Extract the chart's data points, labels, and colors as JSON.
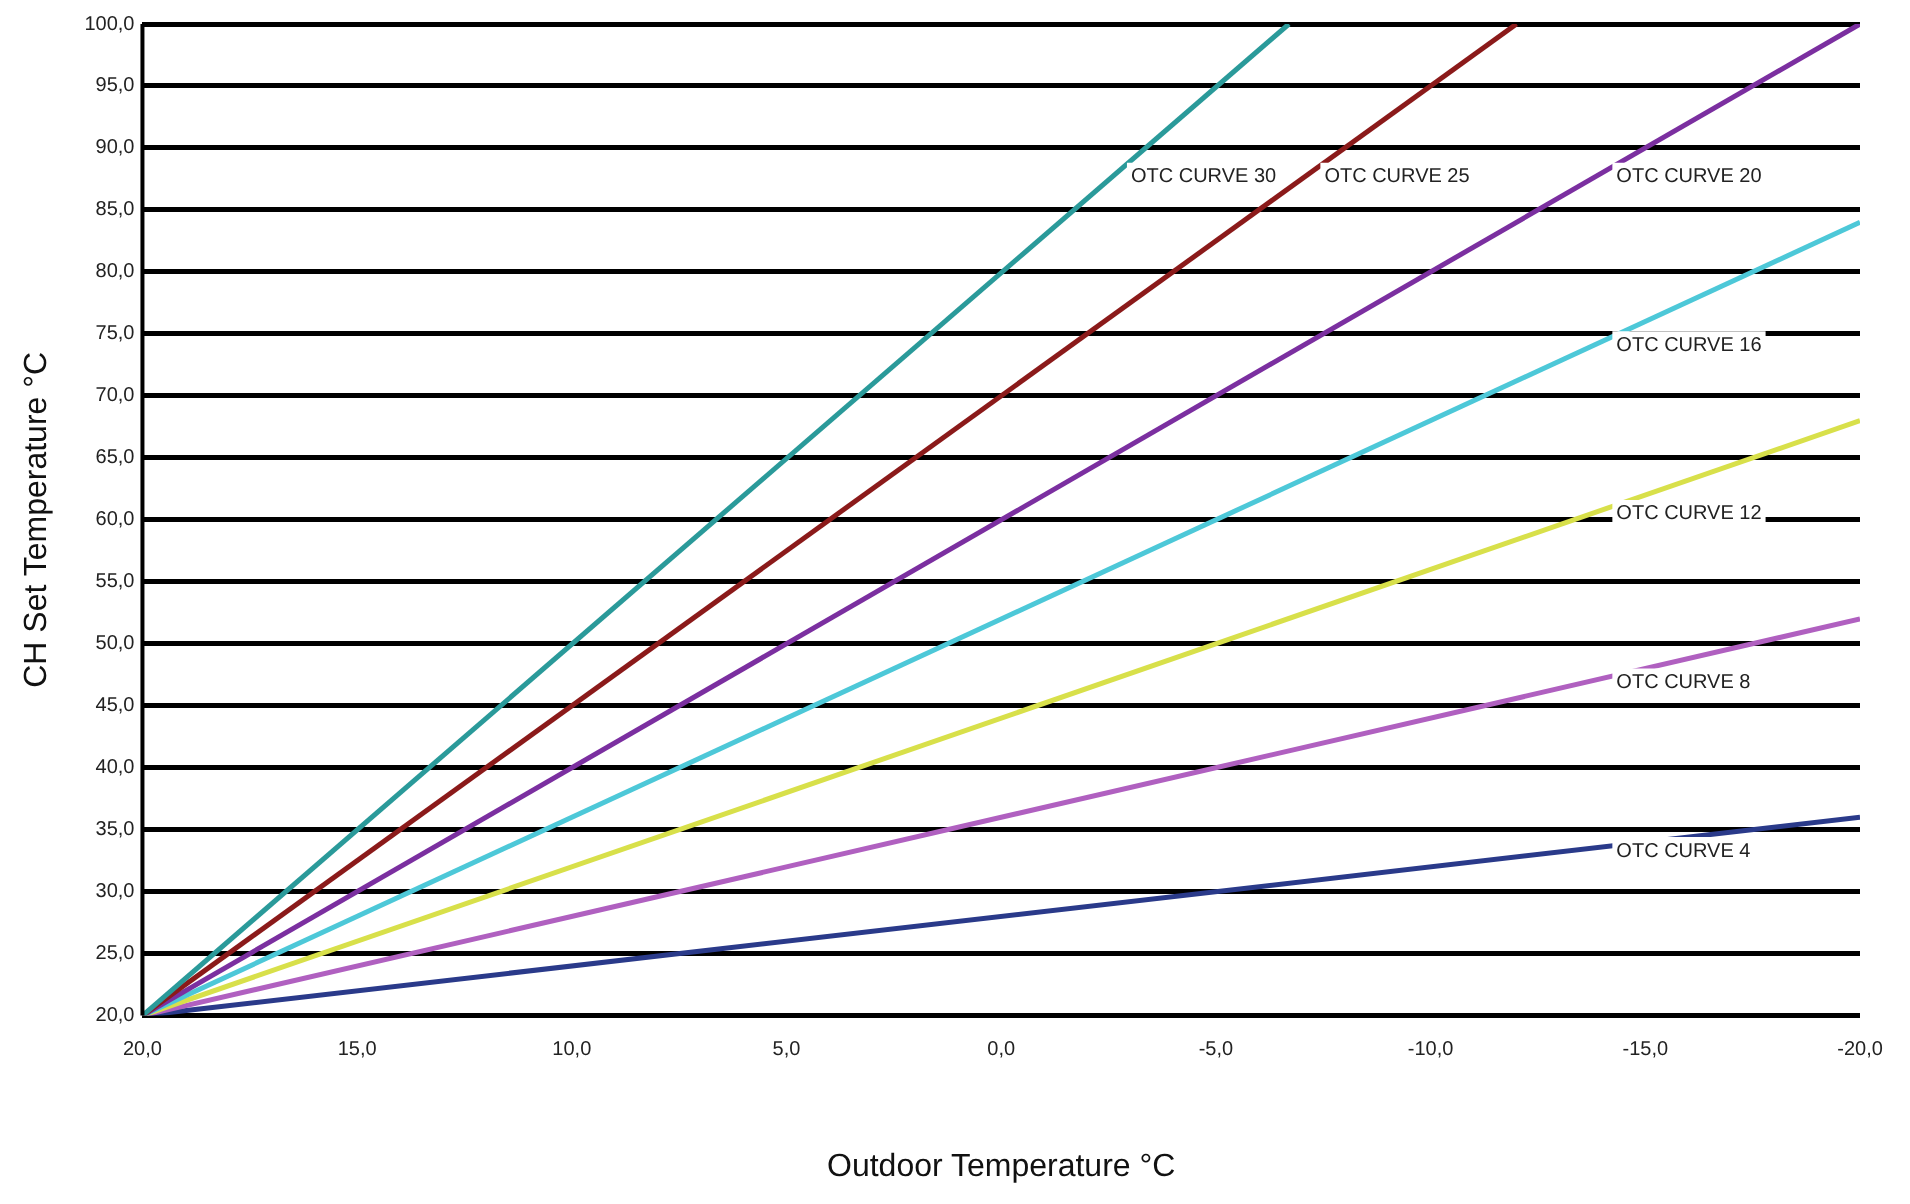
{
  "chart_data": {
    "type": "line",
    "xlabel": "Outdoor Temperature °C",
    "ylabel": "CH Set Temperature °C",
    "xlim": [
      20,
      -20
    ],
    "ylim": [
      20,
      100
    ],
    "xticks": [
      {
        "value": 20,
        "label": "20,0"
      },
      {
        "value": 15,
        "label": "15,0"
      },
      {
        "value": 10,
        "label": "10,0"
      },
      {
        "value": 5,
        "label": "5,0"
      },
      {
        "value": 0,
        "label": "0,0"
      },
      {
        "value": -5,
        "label": "-5,0"
      },
      {
        "value": -10,
        "label": "-10,0"
      },
      {
        "value": -15,
        "label": "-15,0"
      },
      {
        "value": -20,
        "label": "-20,0"
      }
    ],
    "yticks": [
      {
        "value": 20,
        "label": "20,0"
      },
      {
        "value": 25,
        "label": "25,0"
      },
      {
        "value": 30,
        "label": "30,0"
      },
      {
        "value": 35,
        "label": "35,0"
      },
      {
        "value": 40,
        "label": "40,0"
      },
      {
        "value": 45,
        "label": "45,0"
      },
      {
        "value": 50,
        "label": "50,0"
      },
      {
        "value": 55,
        "label": "55,0"
      },
      {
        "value": 60,
        "label": "60,0"
      },
      {
        "value": 65,
        "label": "65,0"
      },
      {
        "value": 70,
        "label": "70,0"
      },
      {
        "value": 75,
        "label": "75,0"
      },
      {
        "value": 80,
        "label": "80,0"
      },
      {
        "value": 85,
        "label": "85,0"
      },
      {
        "value": 90,
        "label": "90,0"
      },
      {
        "value": 95,
        "label": "95,0"
      },
      {
        "value": 100,
        "label": "100,0"
      }
    ],
    "grid": "y",
    "legend": false,
    "marker": "none",
    "line_style": "solid",
    "series": [
      {
        "name": "OTC CURVE 30",
        "color": "#2a9a9a",
        "x": [
          20,
          -6.7
        ],
        "values": [
          20,
          100
        ]
      },
      {
        "name": "OTC CURVE 25",
        "color": "#8b1a1a",
        "x": [
          20,
          -12
        ],
        "values": [
          20,
          100
        ]
      },
      {
        "name": "OTC CURVE 20",
        "color": "#7b2fa0",
        "x": [
          20,
          -20
        ],
        "values": [
          20,
          100
        ]
      },
      {
        "name": "OTC CURVE 16",
        "color": "#4dc8d8",
        "x": [
          20,
          -20
        ],
        "values": [
          20,
          84
        ]
      },
      {
        "name": "OTC CURVE 12",
        "color": "#d8e04a",
        "x": [
          20,
          -20
        ],
        "values": [
          20,
          68
        ]
      },
      {
        "name": "OTC CURVE 8",
        "color": "#b060c0",
        "x": [
          20,
          -20
        ],
        "values": [
          20,
          52
        ]
      },
      {
        "name": "OTC CURVE 4",
        "color": "#2a3a8a",
        "x": [
          20,
          -20
        ],
        "values": [
          20,
          36
        ]
      }
    ]
  }
}
